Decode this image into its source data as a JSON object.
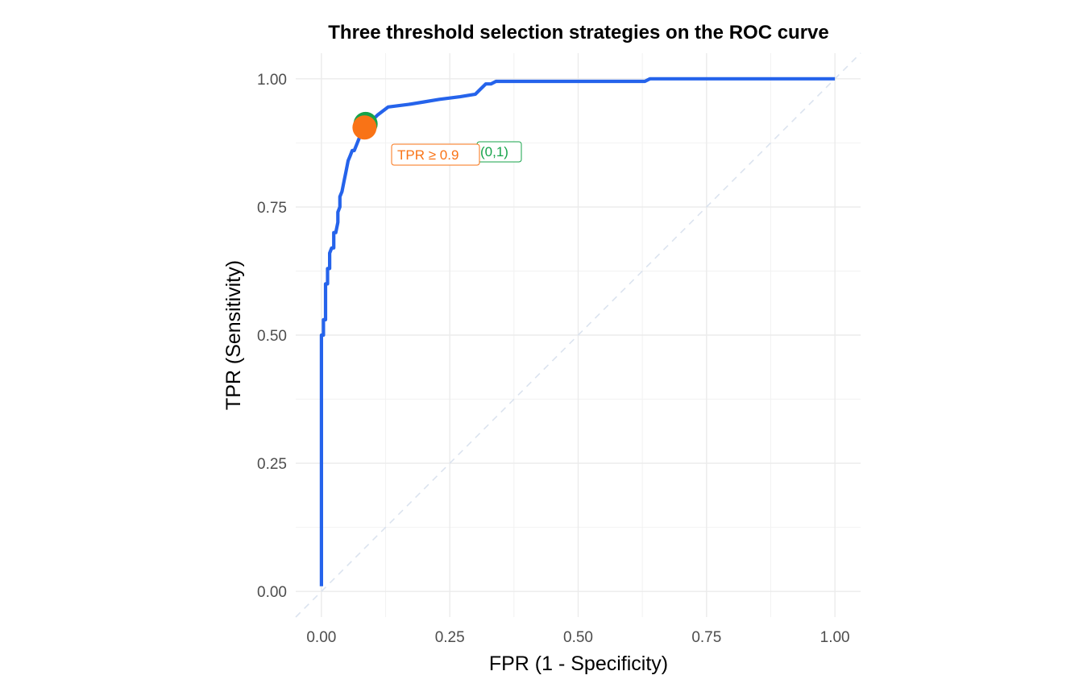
{
  "chart_data": {
    "type": "line",
    "title": "Three threshold selection strategies on the ROC curve",
    "xlabel": "FPR (1 - Specificity)",
    "ylabel": "TPR (Sensitivity)",
    "xlim": [
      -0.05,
      1.05
    ],
    "ylim": [
      -0.05,
      1.05
    ],
    "xticks": [
      0,
      0.25,
      0.5,
      0.75,
      1
    ],
    "yticks": [
      0,
      0.25,
      0.5,
      0.75,
      1
    ],
    "xtick_labels": [
      "0.00",
      "0.25",
      "0.50",
      "0.75",
      "1.00"
    ],
    "ytick_labels": [
      "0.00",
      "0.25",
      "0.50",
      "0.75",
      "1.00"
    ],
    "grid": true,
    "legend": "none",
    "series": [
      {
        "color": "#2563eb",
        "x": [
          0,
          0,
          0.004,
          0.004,
          0.008,
          0.008,
          0.012,
          0.012,
          0.016,
          0.016,
          0.02,
          0.024,
          0.024,
          0.028,
          0.032,
          0.032,
          0.036,
          0.036,
          0.04,
          0.044,
          0.048,
          0.052,
          0.056,
          0.06,
          0.064,
          0.068,
          0.072,
          0.076,
          0.08,
          0.084,
          0.09,
          0.1,
          0.11,
          0.13,
          0.17,
          0.2,
          0.23,
          0.27,
          0.3,
          0.31,
          0.32,
          0.33,
          0.34,
          0.5,
          0.63,
          0.64,
          1.0
        ],
        "y": [
          0.01,
          0.5,
          0.5,
          0.53,
          0.53,
          0.6,
          0.6,
          0.63,
          0.63,
          0.66,
          0.67,
          0.67,
          0.7,
          0.7,
          0.72,
          0.74,
          0.75,
          0.77,
          0.78,
          0.8,
          0.82,
          0.84,
          0.85,
          0.86,
          0.86,
          0.87,
          0.88,
          0.89,
          0.9,
          0.905,
          0.91,
          0.92,
          0.93,
          0.945,
          0.95,
          0.955,
          0.96,
          0.965,
          0.97,
          0.98,
          0.99,
          0.99,
          0.995,
          0.995,
          0.995,
          1.0,
          1.0
        ]
      }
    ],
    "reference_line": {
      "x": [
        0,
        1
      ],
      "y": [
        0,
        1
      ],
      "color": "#dbe3ef",
      "style": "dashed"
    },
    "points": [
      {
        "label": "(0,1)",
        "x": 0.086,
        "y": 0.912,
        "color": "#16a34a"
      },
      {
        "label": "TPR ≥ 0.9",
        "x": 0.084,
        "y": 0.905,
        "color": "#f97316"
      }
    ]
  }
}
